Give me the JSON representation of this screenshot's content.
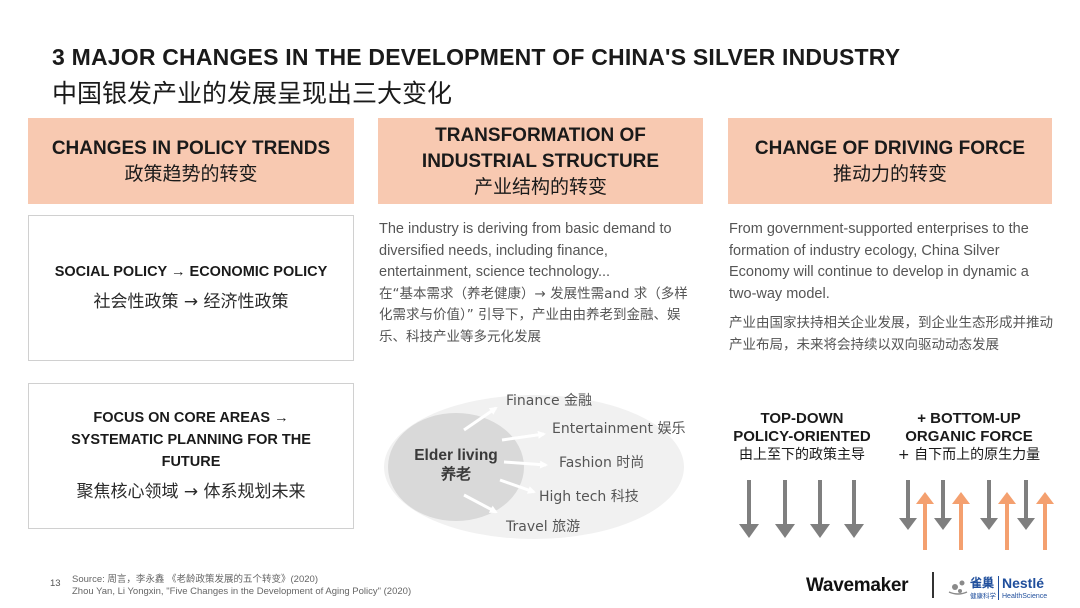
{
  "title": {
    "en": "3 MAJOR CHANGES IN THE DEVELOPMENT OF CHINA'S SILVER INDUSTRY",
    "cn": "中国银发产业的发展呈现出三大变化"
  },
  "col1": {
    "header_en": "CHANGES IN POLICY TRENDS",
    "header_cn": "政策趋势的转变",
    "box1_en": "SOCIAL POLICY → ECONOMIC POLICY",
    "box1_cn": "社会性政策  → 经济性政策",
    "box2_en_line1": "FOCUS ON CORE AREAS →",
    "box2_en_line2": "SYSTEMATIC PLANNING FOR THE",
    "box2_en_line3": "FUTURE",
    "box2_cn": "聚焦核心领域 → 体系规划未来"
  },
  "col2": {
    "header_en_line1": "TRANSFORMATION OF",
    "header_en_line2": "INDUSTRIAL STRUCTURE",
    "header_cn": "产业结构的转变",
    "text_en": "The industry is deriving from basic demand to diversified needs, including finance, entertainment, science technology...",
    "text_cn": "在“基本需求（养老健康）→ 发展性需and 求（多样化需求与价值）” 引导下，产业由由养老到金融、娱乐、科技产业等多元化发展",
    "center_en": "Elder living",
    "center_cn": "养老",
    "branches": [
      "Finance 金融",
      "Entertainment 娱乐",
      "Fashion 时尚",
      "High tech 科技",
      "Travel 旅游"
    ]
  },
  "col3": {
    "header_en": "CHANGE OF DRIVING FORCE",
    "header_cn": "推动力的转变",
    "text_en": "From government-supported enterprises to the formation of industry ecology, China Silver Economy will continue to develop in dynamic a two-way model.",
    "text_cn": "产业由国家扶持相关企业发展，到企业生态形成并推动产业布局，未来将会持续以双向驱动动态发展",
    "topdown_line1": "TOP-DOWN",
    "topdown_line2": "POLICY-ORIENTED",
    "topdown_cn": "由上至下的政策主导",
    "bottomup_line1": "+ BOTTOM-UP",
    "bottomup_line2": "ORGANIC FORCE",
    "bottomup_cn": "+ 自下而上的原生力量"
  },
  "footer": {
    "page_number": "13",
    "source_line1": "Source: 周言，李永鑫 《老龄政策发展的五个转变》(2020)",
    "source_line2": "Zhou Yan, Li Yongxin, \"Five Changes in the Development of Aging Policy\" (2020)",
    "brand_wavemaker": "Wavemaker",
    "brand_quechao": "雀巢",
    "brand_quechao_sub": "健康科学",
    "brand_nestle": "Nestlé",
    "brand_nestle_sub": "HealthScience"
  },
  "colors": {
    "header_fill": "#f8c9b1",
    "arrow_gray": "#7f7f7f",
    "arrow_orange": "#f4a06f",
    "ellipse_outer": "#f1f1f1",
    "ellipse_inner": "#d9d9d9"
  }
}
